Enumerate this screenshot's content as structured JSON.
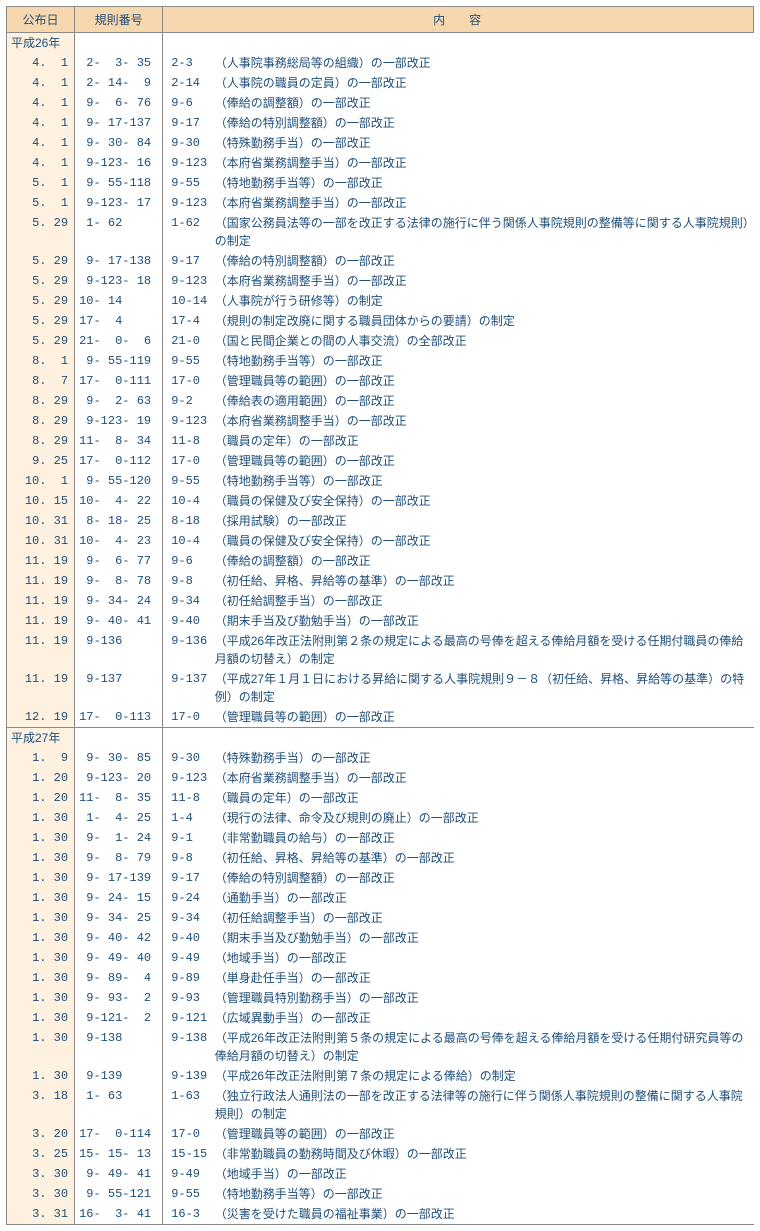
{
  "header": {
    "date": "公布日",
    "rule": "規則番号",
    "body": "内容"
  },
  "rows": [
    {
      "era": "平成26年"
    },
    {
      "date": "4.  1",
      "rule": " 2-  3- 35",
      "code": "2-3",
      "desc": "（人事院事務総局等の組織）の一部改正"
    },
    {
      "date": "4.  1",
      "rule": " 2- 14-  9",
      "code": "2-14",
      "desc": "（人事院の職員の定員）の一部改正"
    },
    {
      "date": "4.  1",
      "rule": " 9-  6- 76",
      "code": "9-6",
      "desc": "（俸給の調整額）の一部改正"
    },
    {
      "date": "4.  1",
      "rule": " 9- 17-137",
      "code": "9-17",
      "desc": "（俸給の特別調整額）の一部改正"
    },
    {
      "date": "4.  1",
      "rule": " 9- 30- 84",
      "code": "9-30",
      "desc": "（特殊勤務手当）の一部改正"
    },
    {
      "date": "4.  1",
      "rule": " 9-123- 16",
      "code": "9-123",
      "desc": "（本府省業務調整手当）の一部改正"
    },
    {
      "date": "5.  1",
      "rule": " 9- 55-118",
      "code": "9-55",
      "desc": "（特地勤務手当等）の一部改正"
    },
    {
      "date": "5.  1",
      "rule": " 9-123- 17",
      "code": "9-123",
      "desc": "（本府省業務調整手当）の一部改正"
    },
    {
      "date": "5. 29",
      "rule": " 1- 62",
      "code": "1-62",
      "desc": "（国家公務員法等の一部を改正する法律の施行に伴う関係人事院規則の整備等に関する人事院規則）の制定"
    },
    {
      "date": "5. 29",
      "rule": " 9- 17-138",
      "code": "9-17",
      "desc": "（俸給の特別調整額）の一部改正"
    },
    {
      "date": "5. 29",
      "rule": " 9-123- 18",
      "code": "9-123",
      "desc": "（本府省業務調整手当）の一部改正"
    },
    {
      "date": "5. 29",
      "rule": "10- 14",
      "code": "10-14",
      "desc": "（人事院が行う研修等）の制定"
    },
    {
      "date": "5. 29",
      "rule": "17-  4",
      "code": "17-4",
      "desc": "（規則の制定改廃に関する職員団体からの要請）の制定"
    },
    {
      "date": "5. 29",
      "rule": "21-  0-  6",
      "code": "21-0",
      "desc": "（国と民間企業との間の人事交流）の全部改正"
    },
    {
      "date": "8.  1",
      "rule": " 9- 55-119",
      "code": "9-55",
      "desc": "（特地勤務手当等）の一部改正"
    },
    {
      "date": "8.  7",
      "rule": "17-  0-111",
      "code": "17-0",
      "desc": "（管理職員等の範囲）の一部改正"
    },
    {
      "date": "8. 29",
      "rule": " 9-  2- 63",
      "code": "9-2",
      "desc": "（俸給表の適用範囲）の一部改正"
    },
    {
      "date": "8. 29",
      "rule": " 9-123- 19",
      "code": "9-123",
      "desc": "（本府省業務調整手当）の一部改正"
    },
    {
      "date": "8. 29",
      "rule": "11-  8- 34",
      "code": "11-8",
      "desc": "（職員の定年）の一部改正"
    },
    {
      "date": "9. 25",
      "rule": "17-  0-112",
      "code": "17-0",
      "desc": "（管理職員等の範囲）の一部改正"
    },
    {
      "date": "10.  1",
      "rule": " 9- 55-120",
      "code": "9-55",
      "desc": "（特地勤務手当等）の一部改正"
    },
    {
      "date": "10. 15",
      "rule": "10-  4- 22",
      "code": "10-4",
      "desc": "（職員の保健及び安全保持）の一部改正"
    },
    {
      "date": "10. 31",
      "rule": " 8- 18- 25",
      "code": "8-18",
      "desc": "（採用試験）の一部改正"
    },
    {
      "date": "10. 31",
      "rule": "10-  4- 23",
      "code": "10-4",
      "desc": "（職員の保健及び安全保持）の一部改正"
    },
    {
      "date": "11. 19",
      "rule": " 9-  6- 77",
      "code": "9-6",
      "desc": "（俸給の調整額）の一部改正"
    },
    {
      "date": "11. 19",
      "rule": " 9-  8- 78",
      "code": "9-8",
      "desc": "（初任給、昇格、昇給等の基準）の一部改正"
    },
    {
      "date": "11. 19",
      "rule": " 9- 34- 24",
      "code": "9-34",
      "desc": "（初任給調整手当）の一部改正"
    },
    {
      "date": "11. 19",
      "rule": " 9- 40- 41",
      "code": "9-40",
      "desc": "（期末手当及び勤勉手当）の一部改正"
    },
    {
      "date": "11. 19",
      "rule": " 9-136",
      "code": "9-136",
      "desc": "（平成26年改正法附則第２条の規定による最高の号俸を超える俸給月額を受ける任期付職員の俸給月額の切替え）の制定"
    },
    {
      "date": "11. 19",
      "rule": " 9-137",
      "code": "9-137",
      "desc": "（平成27年１月１日における昇給に関する人事院規則９－８（初任給、昇格、昇給等の基準）の特例）の制定"
    },
    {
      "date": "12. 19",
      "rule": "17-  0-113",
      "code": "17-0",
      "desc": "（管理職員等の範囲）の一部改正"
    },
    {
      "era": "平成27年",
      "sep": true
    },
    {
      "date": "1.  9",
      "rule": " 9- 30- 85",
      "code": "9-30",
      "desc": "（特殊勤務手当）の一部改正"
    },
    {
      "date": "1. 20",
      "rule": " 9-123- 20",
      "code": "9-123",
      "desc": "（本府省業務調整手当）の一部改正"
    },
    {
      "date": "1. 20",
      "rule": "11-  8- 35",
      "code": "11-8",
      "desc": "（職員の定年）の一部改正"
    },
    {
      "date": "1. 30",
      "rule": " 1-  4- 25",
      "code": "1-4",
      "desc": "（現行の法律、命令及び規則の廃止）の一部改正"
    },
    {
      "date": "1. 30",
      "rule": " 9-  1- 24",
      "code": "9-1",
      "desc": "（非常勤職員の給与）の一部改正"
    },
    {
      "date": "1. 30",
      "rule": " 9-  8- 79",
      "code": "9-8",
      "desc": "（初任給、昇格、昇給等の基準）の一部改正"
    },
    {
      "date": "1. 30",
      "rule": " 9- 17-139",
      "code": "9-17",
      "desc": "（俸給の特別調整額）の一部改正"
    },
    {
      "date": "1. 30",
      "rule": " 9- 24- 15",
      "code": "9-24",
      "desc": "（通勤手当）の一部改正"
    },
    {
      "date": "1. 30",
      "rule": " 9- 34- 25",
      "code": "9-34",
      "desc": "（初任給調整手当）の一部改正"
    },
    {
      "date": "1. 30",
      "rule": " 9- 40- 42",
      "code": "9-40",
      "desc": "（期末手当及び勤勉手当）の一部改正"
    },
    {
      "date": "1. 30",
      "rule": " 9- 49- 40",
      "code": "9-49",
      "desc": "（地域手当）の一部改正"
    },
    {
      "date": "1. 30",
      "rule": " 9- 89-  4",
      "code": "9-89",
      "desc": "（単身赴任手当）の一部改正"
    },
    {
      "date": "1. 30",
      "rule": " 9- 93-  2",
      "code": "9-93",
      "desc": "（管理職員特別勤務手当）の一部改正"
    },
    {
      "date": "1. 30",
      "rule": " 9-121-  2",
      "code": "9-121",
      "desc": "（広域異動手当）の一部改正"
    },
    {
      "date": "1. 30",
      "rule": " 9-138",
      "code": "9-138",
      "desc": "（平成26年改正法附則第５条の規定による最高の号俸を超える俸給月額を受ける任期付研究員等の俸給月額の切替え）の制定"
    },
    {
      "date": "1. 30",
      "rule": " 9-139",
      "code": "9-139",
      "desc": "（平成26年改正法附則第７条の規定による俸給）の制定"
    },
    {
      "date": "3. 18",
      "rule": " 1- 63",
      "code": "1-63",
      "desc": "（独立行政法人通則法の一部を改正する法律等の施行に伴う関係人事院規則の整備に関する人事院規則）の制定"
    },
    {
      "date": "3. 20",
      "rule": "17-  0-114",
      "code": "17-0",
      "desc": "（管理職員等の範囲）の一部改正"
    },
    {
      "date": "3. 25",
      "rule": "15- 15- 13",
      "code": "15-15",
      "desc": "（非常勤職員の勤務時間及び休暇）の一部改正"
    },
    {
      "date": "3. 30",
      "rule": " 9- 49- 41",
      "code": "9-49",
      "desc": "（地域手当）の一部改正"
    },
    {
      "date": "3. 30",
      "rule": " 9- 55-121",
      "code": "9-55",
      "desc": "（特地勤務手当等）の一部改正"
    },
    {
      "date": "3. 31",
      "rule": "16-  3- 41",
      "code": "16-3",
      "desc": "（災害を受けた職員の福祉事業）の一部改正",
      "last": true
    }
  ]
}
